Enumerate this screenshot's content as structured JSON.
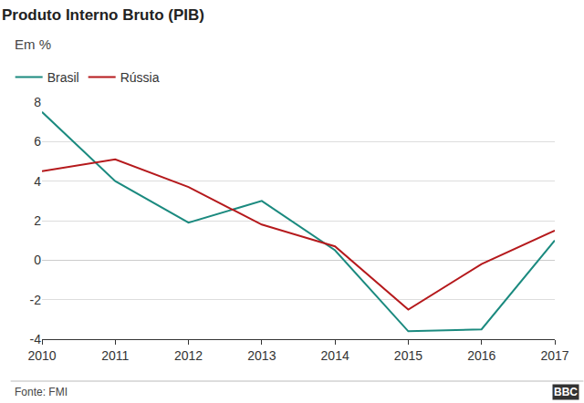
{
  "chart_data": {
    "type": "line",
    "title": "Produto Interno Bruto (PIB)",
    "subtitle": "Em %",
    "x": [
      2010,
      2011,
      2012,
      2013,
      2014,
      2015,
      2016,
      2017
    ],
    "series": [
      {
        "name": "Brasil",
        "color": "#1b8a7f",
        "values": [
          7.5,
          4.0,
          1.9,
          3.0,
          0.5,
          -3.6,
          -3.5,
          1.0
        ]
      },
      {
        "name": "Rússia",
        "color": "#b5191c",
        "values": [
          4.5,
          5.1,
          3.7,
          1.8,
          0.7,
          -2.5,
          -0.2,
          1.5
        ]
      }
    ],
    "xlim": [
      2010,
      2017
    ],
    "xticks": [
      2010,
      2011,
      2012,
      2013,
      2014,
      2015,
      2016,
      2017
    ],
    "ylim": [
      -4,
      8
    ],
    "yticks": [
      -4,
      -2,
      0,
      2,
      4,
      6,
      8
    ],
    "grid": true,
    "legend": "top-left",
    "source": "Fonte: FMI",
    "logo": "BBC"
  }
}
